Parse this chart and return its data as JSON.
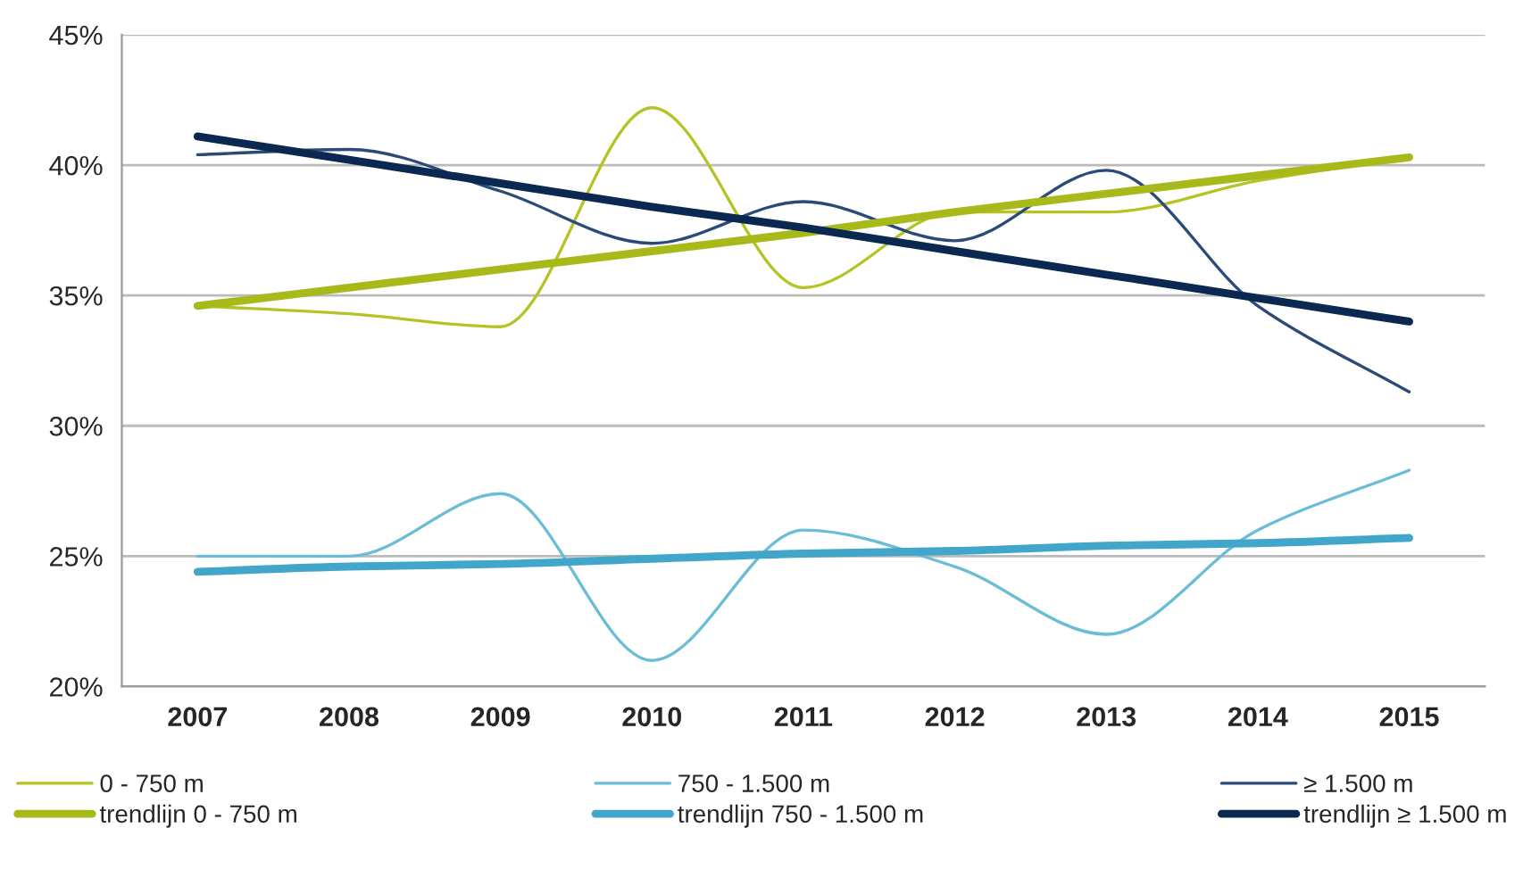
{
  "chart_data": {
    "type": "line",
    "categories": [
      "2007",
      "2008",
      "2009",
      "2010",
      "2011",
      "2012",
      "2013",
      "2014",
      "2015"
    ],
    "series": [
      {
        "name": "0 - 750 m",
        "color": "#b5c327",
        "values": [
          34.6,
          34.3,
          33.8,
          42.2,
          35.3,
          38.2,
          38.2,
          39.4,
          40.3
        ]
      },
      {
        "name": "750 - 1.500 m",
        "color": "#6bbcd6",
        "values": [
          25.0,
          25.0,
          27.4,
          21.0,
          26.0,
          24.6,
          22.0,
          26.0,
          28.3
        ]
      },
      {
        "name": "≥ 1.500 m",
        "color": "#2a4a78",
        "values": [
          40.4,
          40.6,
          39.0,
          37.0,
          38.6,
          37.1,
          39.8,
          34.6,
          31.3
        ]
      },
      {
        "name": "trendlijn 0 - 750 m",
        "color": "#a8b91a",
        "values": [
          34.6,
          35.3,
          36.0,
          36.7,
          37.4,
          38.2,
          38.9,
          39.6,
          40.3
        ]
      },
      {
        "name": "trendlijn 750 - 1.500 m",
        "color": "#41a6c9",
        "values": [
          24.4,
          24.6,
          24.7,
          24.9,
          25.1,
          25.2,
          25.4,
          25.5,
          25.7
        ]
      },
      {
        "name": "trendlijn ≥ 1.500 m",
        "color": "#0b2850",
        "values": [
          41.1,
          40.2,
          39.3,
          38.4,
          37.6,
          36.7,
          35.8,
          34.9,
          34.0
        ]
      }
    ],
    "ylim": [
      20,
      45
    ],
    "yticks": [
      {
        "value": 20,
        "label": "20%"
      },
      {
        "value": 25,
        "label": "25%"
      },
      {
        "value": 30,
        "label": "30%"
      },
      {
        "value": 35,
        "label": "35%"
      },
      {
        "value": 40,
        "label": "40%"
      },
      {
        "value": 45,
        "label": "45%"
      }
    ],
    "grid": "y",
    "legend": "bottom",
    "marker": "none",
    "line_style": "solid"
  }
}
